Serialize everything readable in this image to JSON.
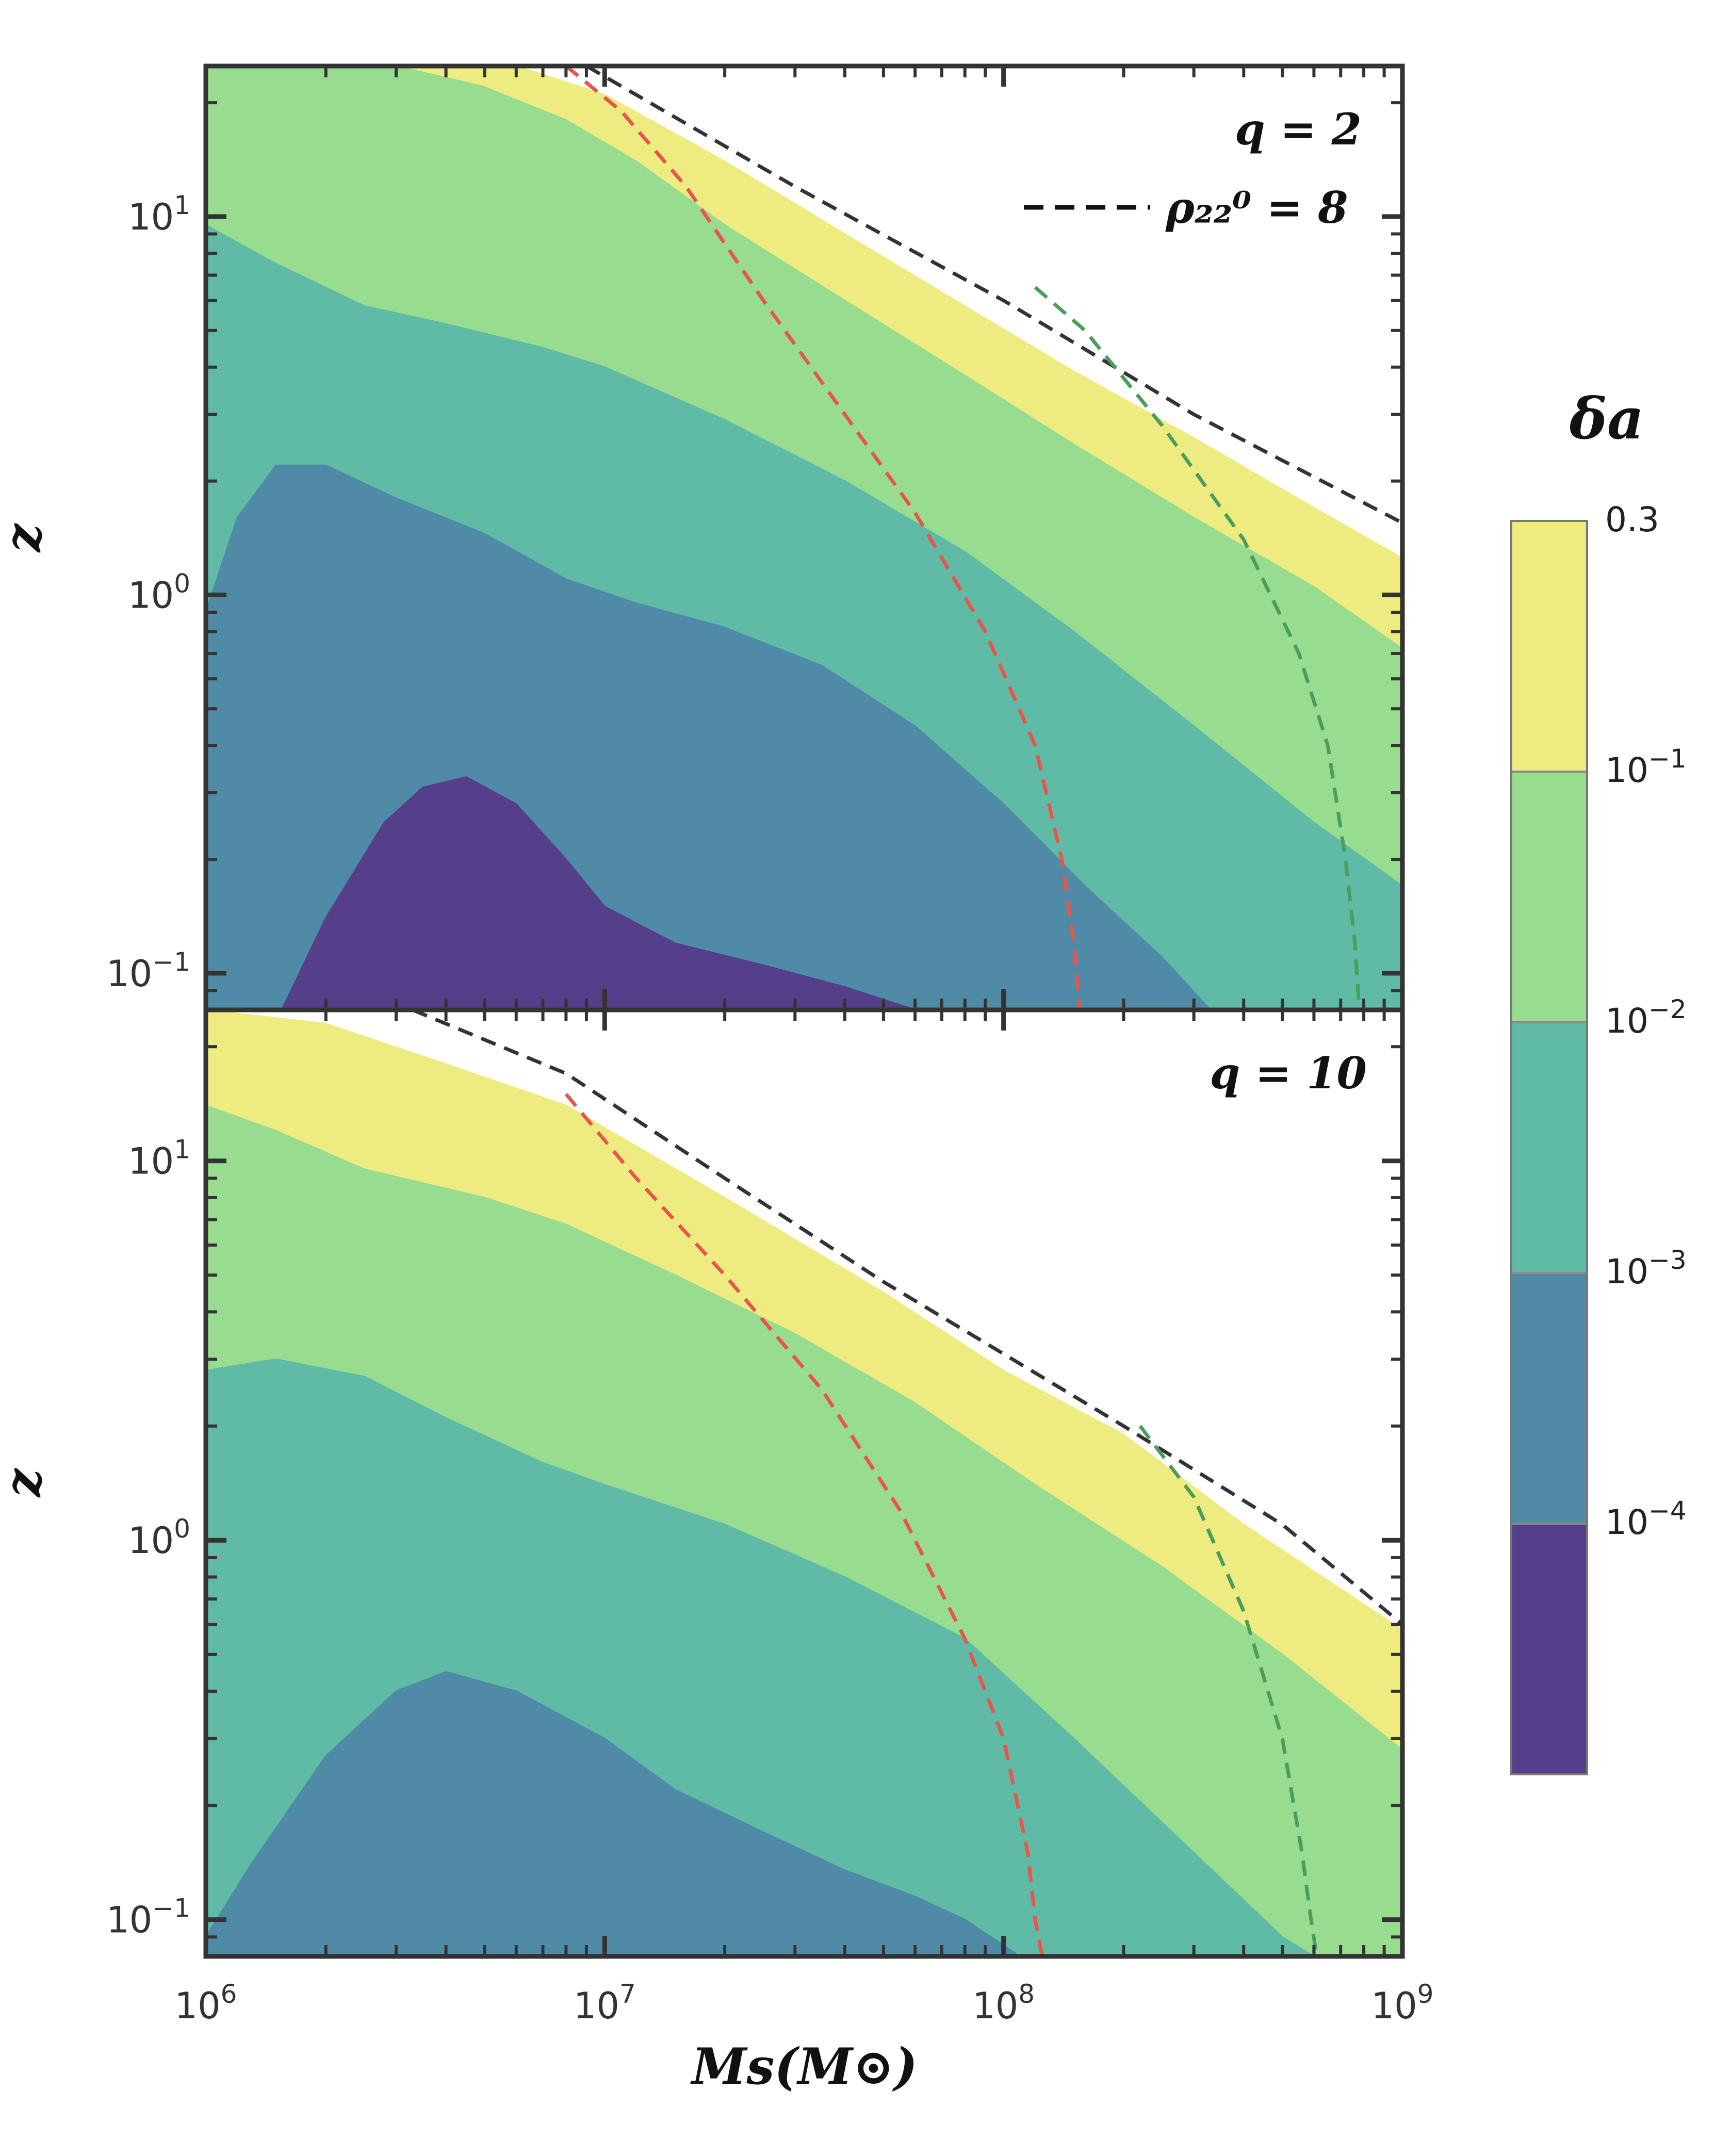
{
  "chart_data": [
    {
      "type": "contourf",
      "panel": "top",
      "annotation": "q = 2",
      "legend": {
        "entry": "ρ₂₂⁰ = 8",
        "location": "top-right",
        "style": "black dashed"
      },
      "xlabel": "Ms(M⊙)",
      "ylabel": "z",
      "xscale": "log",
      "yscale": "log",
      "xlim": [
        1000000.0,
        1000000000.0
      ],
      "ylim": [
        0.08,
        25
      ],
      "x_tick_labels": [
        "10^6",
        "10^7",
        "10^8",
        "10^9"
      ],
      "y_tick_labels": [
        "10^-1",
        "10^0",
        "10^1"
      ],
      "levels": [
        {
          "range": "1e-4 – 1e-3",
          "color": "#4f8aa6",
          "boundary": [
            [
              1000000.0,
              0.9
            ],
            [
              1200000.0,
              1.6
            ],
            [
              1500000.0,
              2.2
            ],
            [
              2000000.0,
              2.2
            ],
            [
              3000000.0,
              1.8
            ],
            [
              5000000.0,
              1.45
            ],
            [
              8000000.0,
              1.1
            ],
            [
              12000000.0,
              0.95
            ],
            [
              20000000.0,
              0.82
            ],
            [
              35000000.0,
              0.65
            ],
            [
              60000000.0,
              0.45
            ],
            [
              100000000.0,
              0.28
            ],
            [
              160000000.0,
              0.17
            ],
            [
              250000000.0,
              0.11
            ],
            [
              330000000.0,
              0.08
            ]
          ]
        },
        {
          "range": "< 1e-4",
          "color": "#563f8a",
          "boundary": [
            [
              1550000.0,
              0.08
            ],
            [
              2000000.0,
              0.14
            ],
            [
              2800000.0,
              0.25
            ],
            [
              3500000.0,
              0.31
            ],
            [
              4500000.0,
              0.33
            ],
            [
              6000000.0,
              0.28
            ],
            [
              8000000.0,
              0.2
            ],
            [
              10000000.0,
              0.15
            ],
            [
              15000000.0,
              0.12
            ],
            [
              25000000.0,
              0.105
            ],
            [
              40000000.0,
              0.092
            ],
            [
              60000000.0,
              0.08
            ]
          ]
        },
        {
          "range": "1e-3 – 1e-2",
          "color": "#5fbba5",
          "boundary": [
            [
              1000000.0,
              9.5
            ],
            [
              1500000.0,
              7.5
            ],
            [
              2500000.0,
              5.8
            ],
            [
              4000000.0,
              5.2
            ],
            [
              7000000.0,
              4.5
            ],
            [
              10000000.0,
              4.0
            ],
            [
              20000000.0,
              2.9
            ],
            [
              40000000.0,
              2.0
            ],
            [
              80000000.0,
              1.3
            ],
            [
              150000000.0,
              0.8
            ],
            [
              300000000.0,
              0.45
            ],
            [
              600000000.0,
              0.25
            ],
            [
              1000000000.0,
              0.17
            ]
          ]
        },
        {
          "range": "1e-2 – 1e-1",
          "color": "#98dc8f",
          "boundary": [
            [
              3000000.0,
              25
            ],
            [
              5000000.0,
              22
            ],
            [
              8000000.0,
              18
            ],
            [
              12000000.0,
              14
            ],
            [
              20000000.0,
              9.5
            ],
            [
              40000000.0,
              6.0
            ],
            [
              80000000.0,
              3.8
            ],
            [
              150000000.0,
              2.5
            ],
            [
              300000000.0,
              1.6
            ],
            [
              600000000.0,
              1.05
            ],
            [
              1000000000.0,
              0.72
            ]
          ]
        },
        {
          "range": "1e-1 – 0.3",
          "color": "#eeec80",
          "boundary": [
            [
              6000000.0,
              25
            ],
            [
              10000000.0,
              21
            ],
            [
              20000000.0,
              14
            ],
            [
              40000000.0,
              9.0
            ],
            [
              80000000.0,
              5.8
            ],
            [
              150000000.0,
              3.9
            ],
            [
              300000000.0,
              2.6
            ],
            [
              600000000.0,
              1.7
            ],
            [
              1000000000.0,
              1.25
            ]
          ]
        }
      ],
      "lines": [
        {
          "name": "rho22_0 = 8",
          "color": "#333333",
          "style": "dashed",
          "points": [
            [
              9000000.0,
              25
            ],
            [
              30000000.0,
              12
            ],
            [
              100000000.0,
              6.0
            ],
            [
              300000000.0,
              3.0
            ],
            [
              1000000000.0,
              1.55
            ]
          ]
        },
        {
          "name": "red dashed",
          "color": "#e8554d",
          "style": "dashed",
          "points": [
            [
              8000000.0,
              25
            ],
            [
              11000000.0,
              19
            ],
            [
              16000000.0,
              12
            ],
            [
              25000000.0,
              6.0
            ],
            [
              40000000.0,
              3.0
            ],
            [
              60000000.0,
              1.65
            ],
            [
              90000000.0,
              0.8
            ],
            [
              120000000.0,
              0.4
            ],
            [
              140000000.0,
              0.2
            ],
            [
              150000000.0,
              0.12
            ],
            [
              155000000.0,
              0.08
            ]
          ]
        },
        {
          "name": "green dashed",
          "color": "#4a9e5c",
          "style": "dashed",
          "points": [
            [
              120000000.0,
              6.5
            ],
            [
              160000000.0,
              5.0
            ],
            [
              250000000.0,
              2.8
            ],
            [
              400000000.0,
              1.4
            ],
            [
              550000000.0,
              0.7
            ],
            [
              650000000.0,
              0.4
            ],
            [
              720000000.0,
              0.2
            ],
            [
              760000000.0,
              0.12
            ],
            [
              780000000.0,
              0.08
            ]
          ]
        }
      ]
    },
    {
      "type": "contourf",
      "panel": "bottom",
      "annotation": "q = 10",
      "xlabel": "Ms(M⊙)",
      "ylabel": "z",
      "xscale": "log",
      "yscale": "log",
      "xlim": [
        1000000.0,
        1000000000.0
      ],
      "ylim": [
        0.08,
        25
      ],
      "x_tick_labels": [
        "10^6",
        "10^7",
        "10^8",
        "10^9"
      ],
      "y_tick_labels": [
        "10^-1",
        "10^0",
        "10^1"
      ],
      "levels": [
        {
          "range": "1e-4 – 1e-3",
          "color": "#4f8aa6",
          "boundary": [
            [
              1000000.0,
              0.09
            ],
            [
              1300000.0,
              0.14
            ],
            [
              2000000.0,
              0.27
            ],
            [
              3000000.0,
              0.4
            ],
            [
              4000000.0,
              0.45
            ],
            [
              6000000.0,
              0.4
            ],
            [
              10000000.0,
              0.3
            ],
            [
              15000000.0,
              0.22
            ],
            [
              25000000.0,
              0.17
            ],
            [
              40000000.0,
              0.135
            ],
            [
              60000000.0,
              0.115
            ],
            [
              80000000.0,
              0.1
            ],
            [
              110000000.0,
              0.08
            ]
          ]
        },
        {
          "range": "1e-3 – 1e-2",
          "color": "#5fbba5",
          "boundary": [
            [
              1000000.0,
              2.8
            ],
            [
              1500000.0,
              3.0
            ],
            [
              2500000.0,
              2.7
            ],
            [
              4000000.0,
              2.1
            ],
            [
              7000000.0,
              1.6
            ],
            [
              10000000.0,
              1.4
            ],
            [
              20000000.0,
              1.1
            ],
            [
              40000000.0,
              0.8
            ],
            [
              80000000.0,
              0.55
            ],
            [
              150000000.0,
              0.3
            ],
            [
              300000000.0,
              0.15
            ],
            [
              500000000.0,
              0.09
            ],
            [
              600000000.0,
              0.08
            ]
          ]
        },
        {
          "range": "1e-2 – 1e-1",
          "color": "#98dc8f",
          "boundary": [
            [
              1000000.0,
              14
            ],
            [
              1500000.0,
              12
            ],
            [
              2500000.0,
              9.5
            ],
            [
              5000000.0,
              8.0
            ],
            [
              8000000.0,
              6.8
            ],
            [
              15000000.0,
              5.0
            ],
            [
              30000000.0,
              3.5
            ],
            [
              60000000.0,
              2.3
            ],
            [
              120000000.0,
              1.4
            ],
            [
              250000000.0,
              0.85
            ],
            [
              500000000.0,
              0.5
            ],
            [
              1000000000.0,
              0.28
            ]
          ]
        },
        {
          "range": "1e-1 – 0.3",
          "color": "#eeec80",
          "boundary": [
            [
              1000000.0,
              25
            ],
            [
              2000000.0,
              23
            ],
            [
              4000000.0,
              18
            ],
            [
              8000000.0,
              14
            ],
            [
              20000000.0,
              8.0
            ],
            [
              50000000.0,
              4.5
            ],
            [
              100000000.0,
              2.8
            ],
            [
              200000000.0,
              1.9
            ],
            [
              400000000.0,
              1.1
            ],
            [
              1000000000.0,
              0.58
            ]
          ]
        }
      ],
      "lines": [
        {
          "name": "rho22_0 = 8",
          "color": "#333333",
          "style": "dashed",
          "points": [
            [
              3300000.0,
              25
            ],
            [
              8000000.0,
              17
            ],
            [
              20000000.0,
              9.0
            ],
            [
              50000000.0,
              4.8
            ],
            [
              100000000.0,
              3.1
            ],
            [
              200000000.0,
              2.0
            ],
            [
              500000000.0,
              1.1
            ],
            [
              1000000000.0,
              0.6
            ]
          ]
        },
        {
          "name": "red dashed",
          "color": "#e8554d",
          "style": "dashed",
          "points": [
            [
              8000000.0,
              15
            ],
            [
              12000000.0,
              9.0
            ],
            [
              20000000.0,
              5.0
            ],
            [
              35000000.0,
              2.5
            ],
            [
              55000000.0,
              1.2
            ],
            [
              80000000.0,
              0.55
            ],
            [
              100000000.0,
              0.3
            ],
            [
              115000000.0,
              0.15
            ],
            [
              120000000.0,
              0.1
            ],
            [
              125000000.0,
              0.08
            ]
          ]
        },
        {
          "name": "green dashed",
          "color": "#4a9e5c",
          "style": "dashed",
          "points": [
            [
              220000000.0,
              2.0
            ],
            [
              300000000.0,
              1.3
            ],
            [
              400000000.0,
              0.65
            ],
            [
              500000000.0,
              0.3
            ],
            [
              560000000.0,
              0.15
            ],
            [
              590000000.0,
              0.1
            ],
            [
              610000000.0,
              0.08
            ]
          ]
        }
      ]
    }
  ],
  "colorbar": {
    "title": "δa",
    "bins": [
      {
        "label": "< 1e-4",
        "color": "#563f8a"
      },
      {
        "label": "1e-4 – 1e-3",
        "color": "#4f8aa6"
      },
      {
        "label": "1e-3 – 1e-2",
        "color": "#5fbba5"
      },
      {
        "label": "1e-2 – 1e-1",
        "color": "#98dc8f"
      },
      {
        "label": "1e-1 – 0.3",
        "color": "#eeec80"
      }
    ],
    "tick_labels": [
      {
        "base": "10",
        "exp": "-4"
      },
      {
        "base": "10",
        "exp": "-3"
      },
      {
        "base": "10",
        "exp": "-2"
      },
      {
        "base": "10",
        "exp": "-1"
      },
      {
        "base": "0.3",
        "exp": ""
      }
    ]
  }
}
